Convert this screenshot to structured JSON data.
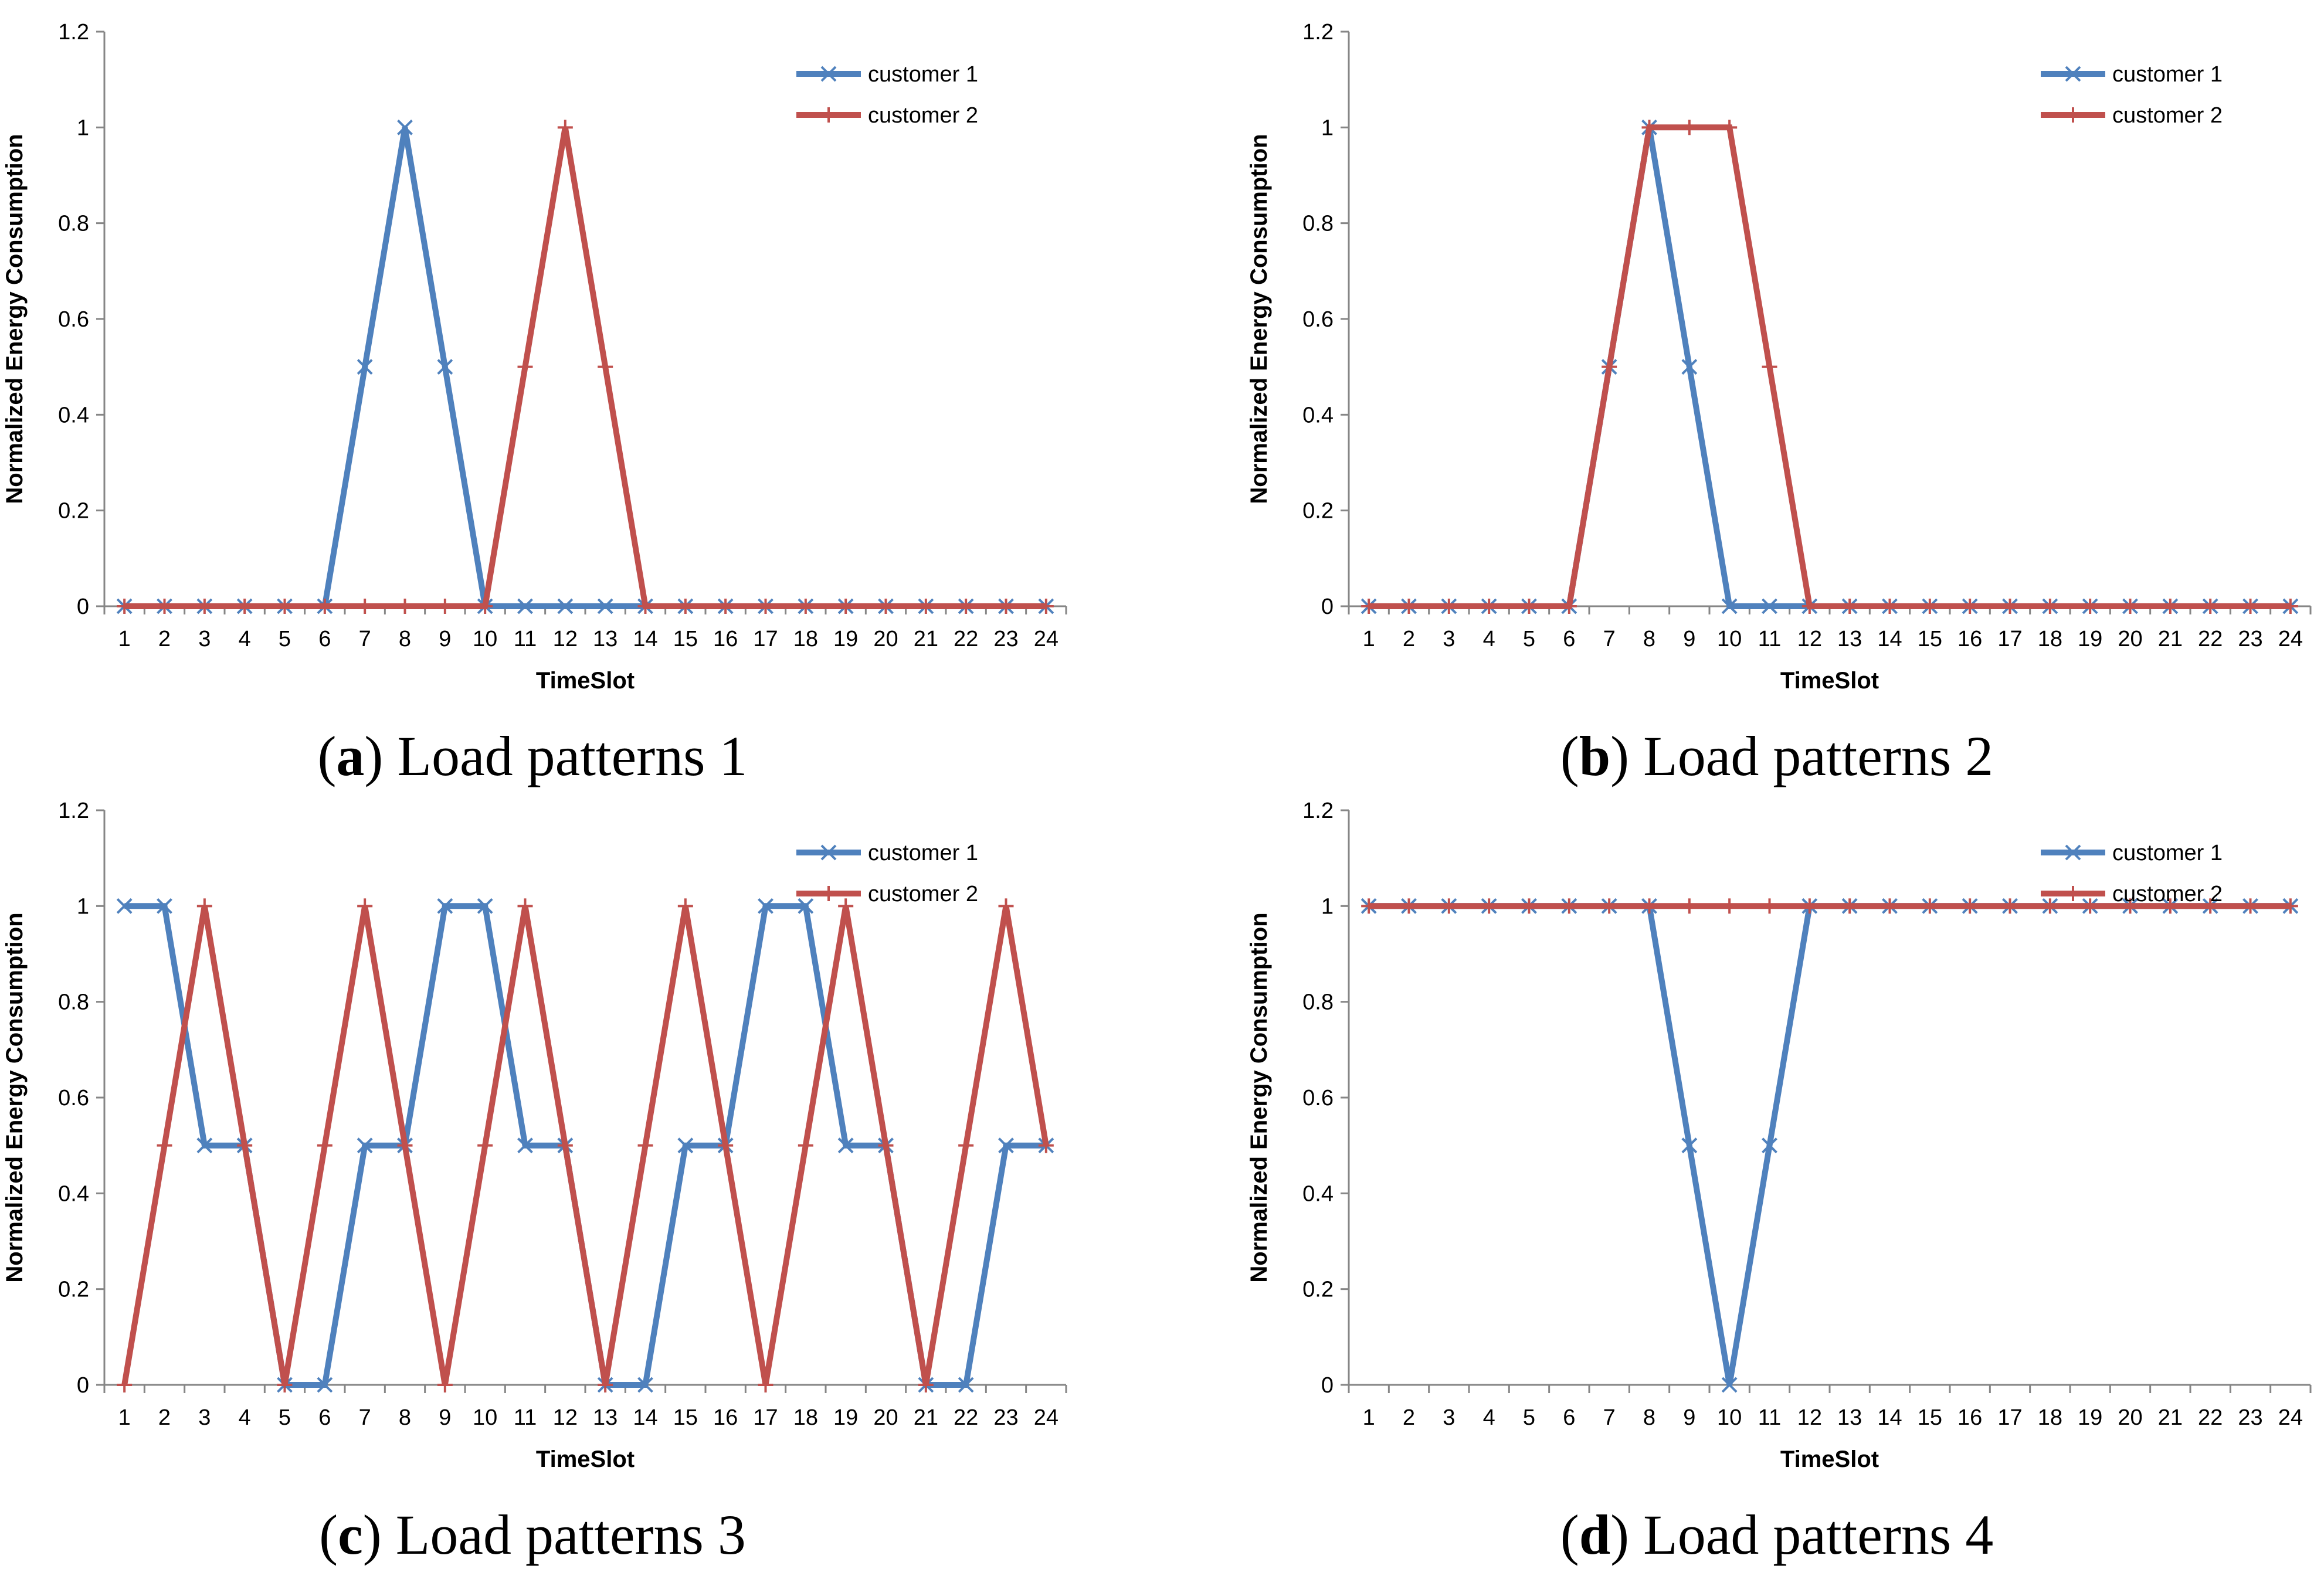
{
  "colors": {
    "customer1": "#4F81BD",
    "customer2": "#C0504D",
    "axis": "#868686"
  },
  "chart_data": [
    {
      "type": "line",
      "caption_letter": "a",
      "caption_text": "Load patterns 1",
      "xlabel": "TimeSlot",
      "ylabel": "Normalized Energy Consumption",
      "ylim": [
        0,
        1.2
      ],
      "yticks": [
        "0",
        "0.2",
        "0.4",
        "0.6",
        "0.8",
        "1",
        "1.2"
      ],
      "categories": [
        "1",
        "2",
        "3",
        "4",
        "5",
        "6",
        "7",
        "8",
        "9",
        "10",
        "11",
        "12",
        "13",
        "14",
        "15",
        "16",
        "17",
        "18",
        "19",
        "20",
        "21",
        "22",
        "23",
        "24"
      ],
      "legend": "top-right",
      "series": [
        {
          "name": "customer 1",
          "marker": "x",
          "values": [
            0,
            0,
            0,
            0,
            0,
            0,
            0.5,
            1,
            0.5,
            0,
            0,
            0,
            0,
            0,
            0,
            0,
            0,
            0,
            0,
            0,
            0,
            0,
            0,
            0
          ]
        },
        {
          "name": "customer 2",
          "marker": "plus",
          "values": [
            0,
            0,
            0,
            0,
            0,
            0,
            0,
            0,
            0,
            0,
            0.5,
            1,
            0.5,
            0,
            0,
            0,
            0,
            0,
            0,
            0,
            0,
            0,
            0,
            0
          ]
        }
      ]
    },
    {
      "type": "line",
      "caption_letter": "b",
      "caption_text": "Load patterns 2",
      "xlabel": "TimeSlot",
      "ylabel": "Normalized Energy Consumption",
      "ylim": [
        0,
        1.2
      ],
      "yticks": [
        "0",
        "0.2",
        "0.4",
        "0.6",
        "0.8",
        "1",
        "1.2"
      ],
      "categories": [
        "1",
        "2",
        "3",
        "4",
        "5",
        "6",
        "7",
        "8",
        "9",
        "10",
        "11",
        "12",
        "13",
        "14",
        "15",
        "16",
        "17",
        "18",
        "19",
        "20",
        "21",
        "22",
        "23",
        "24"
      ],
      "legend": "top-right",
      "series": [
        {
          "name": "customer 1",
          "marker": "x",
          "values": [
            0,
            0,
            0,
            0,
            0,
            0,
            0.5,
            1,
            0.5,
            0,
            0,
            0,
            0,
            0,
            0,
            0,
            0,
            0,
            0,
            0,
            0,
            0,
            0,
            0
          ]
        },
        {
          "name": "customer 2",
          "marker": "plus",
          "values": [
            0,
            0,
            0,
            0,
            0,
            0,
            0.5,
            1,
            1,
            1,
            0.5,
            0,
            0,
            0,
            0,
            0,
            0,
            0,
            0,
            0,
            0,
            0,
            0,
            0
          ]
        }
      ]
    },
    {
      "type": "line",
      "caption_letter": "c",
      "caption_text": "Load patterns 3",
      "xlabel": "TimeSlot",
      "ylabel": "Normalized Energy Consumption",
      "ylim": [
        0,
        1.2
      ],
      "yticks": [
        "0",
        "0.2",
        "0.4",
        "0.6",
        "0.8",
        "1",
        "1.2"
      ],
      "categories": [
        "1",
        "2",
        "3",
        "4",
        "5",
        "6",
        "7",
        "8",
        "9",
        "10",
        "11",
        "12",
        "13",
        "14",
        "15",
        "16",
        "17",
        "18",
        "19",
        "20",
        "21",
        "22",
        "23",
        "24"
      ],
      "legend": "top-right",
      "series": [
        {
          "name": "customer 1",
          "marker": "x",
          "values": [
            1,
            1,
            0.5,
            0.5,
            0,
            0,
            0.5,
            0.5,
            1,
            1,
            0.5,
            0.5,
            0,
            0,
            0.5,
            0.5,
            1,
            1,
            0.5,
            0.5,
            0,
            0,
            0.5,
            0.5
          ]
        },
        {
          "name": "customer 2",
          "marker": "plus",
          "values": [
            0,
            0.5,
            1,
            0.5,
            0,
            0.5,
            1,
            0.5,
            0,
            0.5,
            1,
            0.5,
            0,
            0.5,
            1,
            0.5,
            0,
            0.5,
            1,
            0.5,
            0,
            0.5,
            1,
            0.5
          ]
        }
      ]
    },
    {
      "type": "line",
      "caption_letter": "d",
      "caption_text": "Load patterns 4",
      "xlabel": "TimeSlot",
      "ylabel": "Normalized Energy Consumption",
      "ylim": [
        0,
        1.2
      ],
      "yticks": [
        "0",
        "0.2",
        "0.4",
        "0.6",
        "0.8",
        "1",
        "1.2"
      ],
      "categories": [
        "1",
        "2",
        "3",
        "4",
        "5",
        "6",
        "7",
        "8",
        "9",
        "10",
        "11",
        "12",
        "13",
        "14",
        "15",
        "16",
        "17",
        "18",
        "19",
        "20",
        "21",
        "22",
        "23",
        "24"
      ],
      "legend": "top-right",
      "series": [
        {
          "name": "customer 1",
          "marker": "x",
          "values": [
            1,
            1,
            1,
            1,
            1,
            1,
            1,
            1,
            0.5,
            0,
            0.5,
            1,
            1,
            1,
            1,
            1,
            1,
            1,
            1,
            1,
            1,
            1,
            1,
            1
          ]
        },
        {
          "name": "customer 2",
          "marker": "plus",
          "values": [
            1,
            1,
            1,
            1,
            1,
            1,
            1,
            1,
            1,
            1,
            1,
            1,
            1,
            1,
            1,
            1,
            1,
            1,
            1,
            1,
            1,
            1,
            1,
            1
          ]
        }
      ]
    }
  ]
}
